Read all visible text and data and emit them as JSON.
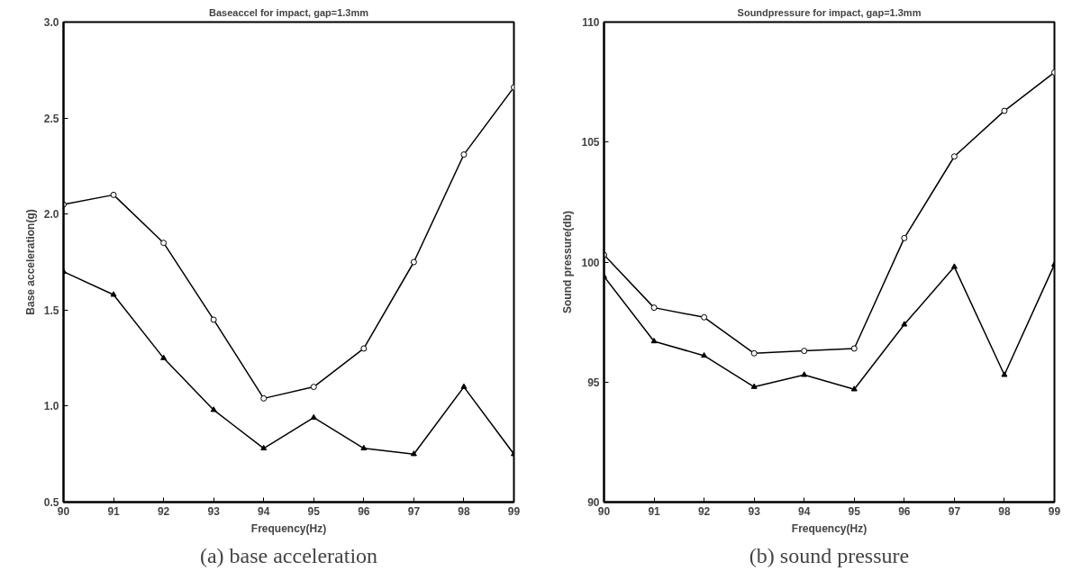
{
  "chart_data": [
    {
      "type": "line",
      "title": "Baseaccel for impact, gap=1.3mm",
      "xlabel": "Frequency(Hz)",
      "ylabel": "Base acceleration(g)",
      "x": [
        90,
        91,
        92,
        93,
        94,
        95,
        96,
        97,
        98,
        99
      ],
      "series": [
        {
          "color": "#000000",
          "marker": "circle",
          "values": [
            2.05,
            2.1,
            1.85,
            1.45,
            1.04,
            1.1,
            1.3,
            1.75,
            2.31,
            2.66
          ]
        },
        {
          "color": "#000000",
          "marker": "triangle",
          "values": [
            1.7,
            1.58,
            1.25,
            0.98,
            0.78,
            0.94,
            0.78,
            0.75,
            1.1,
            0.75
          ]
        }
      ],
      "xlim": [
        90,
        99
      ],
      "xticks": [
        90,
        91,
        92,
        93,
        94,
        95,
        96,
        97,
        98,
        99
      ],
      "ylim": [
        0.5,
        3.0
      ],
      "yticks": [
        {
          "value": 0.5,
          "label": "0.5"
        },
        {
          "value": 1,
          "label": "1.0"
        },
        {
          "value": 1.5,
          "label": "1.5"
        },
        {
          "value": 2,
          "label": "2.0"
        },
        {
          "value": 2.5,
          "label": "2.5"
        },
        {
          "value": 3,
          "label": "3.0"
        }
      ],
      "line_style": "solid",
      "annotations": [
        "(a) base acceleration"
      ]
    },
    {
      "type": "line",
      "title": "Soundpressure for impact, gap=1.3mm",
      "xlabel": "Frequency(Hz)",
      "ylabel": "Sound pressure(db)",
      "x": [
        90,
        91,
        92,
        93,
        94,
        95,
        96,
        97,
        98,
        99
      ],
      "series": [
        {
          "color": "#000000",
          "marker": "circle",
          "values": [
            100.3,
            98.1,
            97.7,
            96.2,
            96.3,
            96.4,
            101.0,
            104.4,
            106.3,
            107.9
          ]
        },
        {
          "color": "#000000",
          "marker": "triangle",
          "values": [
            99.4,
            96.7,
            96.1,
            94.8,
            95.3,
            94.7,
            97.4,
            99.8,
            95.3,
            99.9
          ]
        }
      ],
      "xlim": [
        90,
        99
      ],
      "xticks": [
        90,
        91,
        92,
        93,
        94,
        95,
        96,
        97,
        98,
        99
      ],
      "ylim": [
        90,
        110
      ],
      "yticks": [
        90,
        95,
        100,
        105,
        110
      ],
      "line_style": "solid",
      "annotations": [
        "(b) sound pressure"
      ]
    }
  ]
}
